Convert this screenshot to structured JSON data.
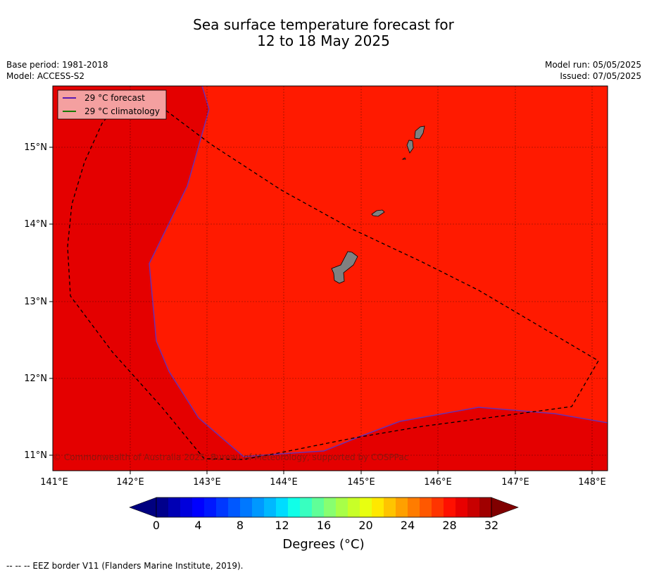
{
  "title": {
    "line1": "Sea surface temperature forecast for",
    "line2": "12 to 18 May 2025"
  },
  "meta_left": [
    "Base period: 1981-2018",
    "Model: ACCESS-S2"
  ],
  "meta_right": [
    "Model run: 05/05/2025",
    "Issued: 07/05/2025"
  ],
  "map": {
    "lon_ticks": [
      "141°E",
      "142°E",
      "143°E",
      "144°E",
      "145°E",
      "146°E",
      "147°E",
      "148°E"
    ],
    "lat_ticks": [
      "15°N",
      "14°N",
      "13°N",
      "12°N",
      "11°N"
    ],
    "lon_range": [
      141.0,
      148.2
    ],
    "lat_range": [
      10.8,
      15.8
    ],
    "colors": {
      "warm_region": "#ff1a00",
      "hot_region": "#e40000",
      "land": "#808080",
      "forecast_line": "#6b2fb0",
      "climatology_line": "#1a7a00"
    },
    "legend": [
      {
        "label": "29 °C  forecast",
        "color": "#5a1ab0"
      },
      {
        "label": "29 °C  climatology",
        "color": "#1a7a00"
      }
    ],
    "copyright": "© Commonwealth of Australia 2025, Bureau of Meteorology, supported by COSPPac"
  },
  "colorbar": {
    "tick_labels": [
      "0",
      "4",
      "8",
      "12",
      "16",
      "20",
      "24",
      "28",
      "32"
    ],
    "label": "Degrees (°C)",
    "colors": [
      "#00008c",
      "#0000b4",
      "#0000dc",
      "#0000ff",
      "#0018ff",
      "#0038ff",
      "#0058ff",
      "#0078ff",
      "#0098ff",
      "#00b8ff",
      "#00dcff",
      "#10ffe8",
      "#38ffc0",
      "#60ff98",
      "#88ff70",
      "#a8ff48",
      "#c8ff28",
      "#e8ff10",
      "#ffe800",
      "#ffc400",
      "#ffa000",
      "#ff7c00",
      "#ff5800",
      "#ff3400",
      "#ff1000",
      "#e80000",
      "#c80000",
      "#a00000"
    ],
    "under_color": "#000080",
    "over_color": "#800000"
  },
  "footer": "--  --  -- EEZ border V11 (Flanders Marine Institute, 2019)."
}
